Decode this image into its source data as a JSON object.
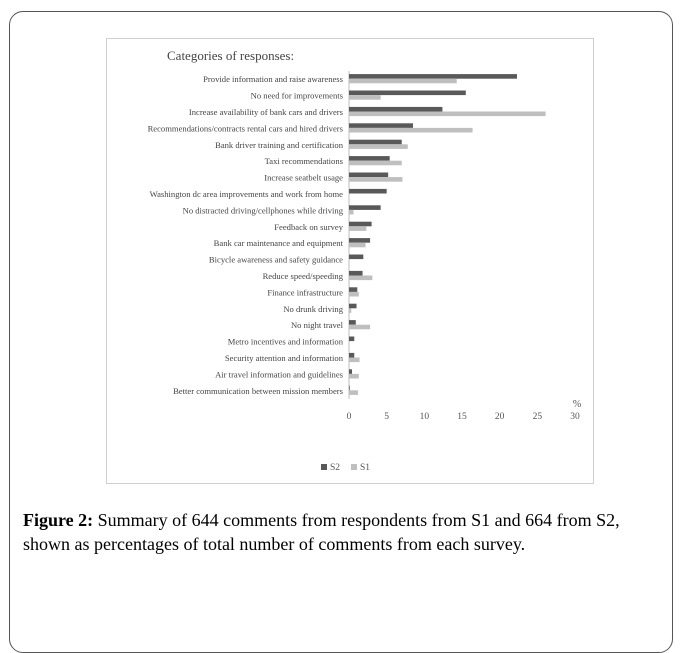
{
  "chart_data": {
    "type": "bar",
    "orientation": "horizontal",
    "title": "Categories of responses:",
    "unit_label": "%",
    "categories": [
      "Provide information and raise awareness",
      "No need for improvements",
      "Increase availability of bank cars and drivers",
      "Recommendations/contracts rental cars and hired drivers",
      "Bank driver training and certification",
      "Taxi recommendations",
      "Increase seatbelt usage",
      "Washington dc area improvements and work from home",
      "No distracted driving/cellphones while driving",
      "Feedback on survey",
      "Bank car maintenance and equipment",
      "Bicycle awareness and safety guidance",
      "Reduce speed/speeding",
      "Finance infrastructure",
      "No drunk driving",
      "No night travel",
      "Metro incentives and information",
      "Security attention and information",
      "Air travel information and guidelines",
      "Better communication between mission members"
    ],
    "series": [
      {
        "name": "S2",
        "color": "#595959",
        "values": [
          22.3,
          15.5,
          12.4,
          8.5,
          7.0,
          5.4,
          5.2,
          5.0,
          4.2,
          3.0,
          2.8,
          1.9,
          1.8,
          1.1,
          1.0,
          0.9,
          0.7,
          0.7,
          0.4,
          0.1
        ]
      },
      {
        "name": "S1",
        "color": "#bfbfbf",
        "values": [
          14.3,
          4.2,
          26.1,
          16.4,
          7.8,
          7.0,
          7.1,
          0.0,
          0.6,
          2.3,
          2.2,
          0.0,
          3.1,
          1.3,
          0.3,
          2.8,
          0.0,
          1.4,
          1.3,
          1.2
        ]
      }
    ],
    "xlim": [
      0,
      30
    ],
    "xticks": [
      0,
      5,
      10,
      15,
      20,
      25,
      30
    ],
    "grid": false,
    "legend_position": "bottom"
  },
  "caption": {
    "lead": "Figure 2:",
    "text": " Summary of 644 comments from respondents from S1 and 664 from S2, shown as percentages of total number of comments from each survey."
  }
}
